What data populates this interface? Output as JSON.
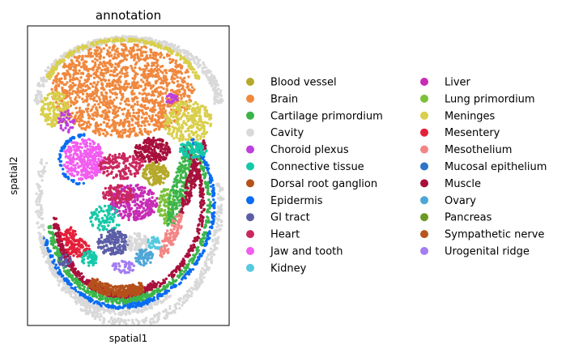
{
  "chart_data": {
    "type": "scatter",
    "title": "annotation",
    "xlabel": "spatial1",
    "ylabel": "spatial2",
    "x_ticks": [],
    "y_ticks": [],
    "grid": false,
    "legend_position": "right, two columns",
    "categories": [
      {
        "name": "Blood vessel",
        "color": "#b5a92b"
      },
      {
        "name": "Brain",
        "color": "#f0883e"
      },
      {
        "name": "Cartilage primordium",
        "color": "#3bb54a"
      },
      {
        "name": "Cavity",
        "color": "#d9d9d9"
      },
      {
        "name": "Choroid plexus",
        "color": "#bd3fdc"
      },
      {
        "name": "Connective tissue",
        "color": "#14c9a7"
      },
      {
        "name": "Dorsal root ganglion",
        "color": "#b5511b"
      },
      {
        "name": "Epidermis",
        "color": "#0a6cf2"
      },
      {
        "name": "GI tract",
        "color": "#5b5ea6"
      },
      {
        "name": "Heart",
        "color": "#c9285e"
      },
      {
        "name": "Jaw and tooth",
        "color": "#f25cf0"
      },
      {
        "name": "Kidney",
        "color": "#56c9df"
      },
      {
        "name": "Liver",
        "color": "#c72cb5"
      },
      {
        "name": "Lung primordium",
        "color": "#7cc13a"
      },
      {
        "name": "Meninges",
        "color": "#d9cf4c"
      },
      {
        "name": "Mesentery",
        "color": "#e41f3a"
      },
      {
        "name": "Mesothelium",
        "color": "#f48585"
      },
      {
        "name": "Mucosal epithelium",
        "color": "#2b74c7"
      },
      {
        "name": "Muscle",
        "color": "#a8103c"
      },
      {
        "name": "Ovary",
        "color": "#4da6d6"
      },
      {
        "name": "Pancreas",
        "color": "#6b9a22"
      },
      {
        "name": "Sympathetic nerve",
        "color": "#b8561c"
      },
      {
        "name": "Urogenital ridge",
        "color": "#a47df2"
      }
    ]
  }
}
